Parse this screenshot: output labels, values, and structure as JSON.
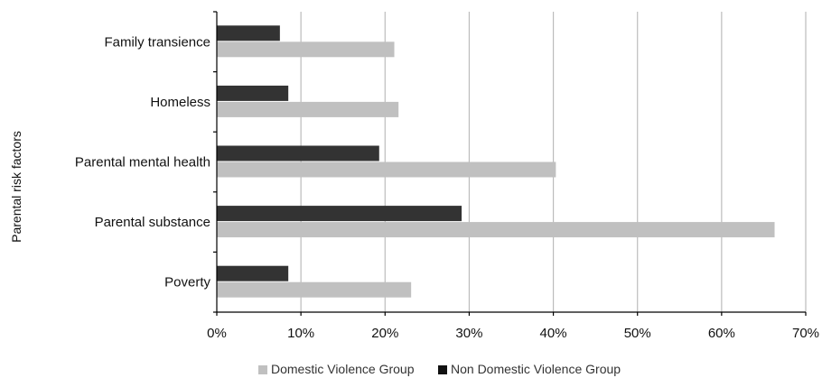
{
  "chart_data": {
    "type": "bar",
    "orientation": "horizontal",
    "categories": [
      "Family transience",
      "Homeless",
      "Parental mental health",
      "Parental substance",
      "Poverty"
    ],
    "series": [
      {
        "name": "Non Domestic Violence Group",
        "values": [
          7.5,
          8.5,
          19.3,
          29.1,
          8.5
        ],
        "color": "#333333"
      },
      {
        "name": "Domestic Violence Group",
        "values": [
          21.1,
          21.6,
          40.3,
          66.3,
          23.1
        ],
        "color": "#c0c0c0"
      }
    ],
    "xlim": [
      0,
      70
    ],
    "xticks": [
      "0%",
      "10%",
      "20%",
      "30%",
      "40%",
      "50%",
      "60%",
      "70%"
    ],
    "ylabel": "Parental risk factors",
    "grid": "vertical",
    "legend_position": "bottom"
  },
  "legend": {
    "items": [
      {
        "label": "Domestic Violence Group",
        "color": "#c0c0c0"
      },
      {
        "label": "Non Domestic Violence Group",
        "color": "#111111"
      }
    ]
  }
}
